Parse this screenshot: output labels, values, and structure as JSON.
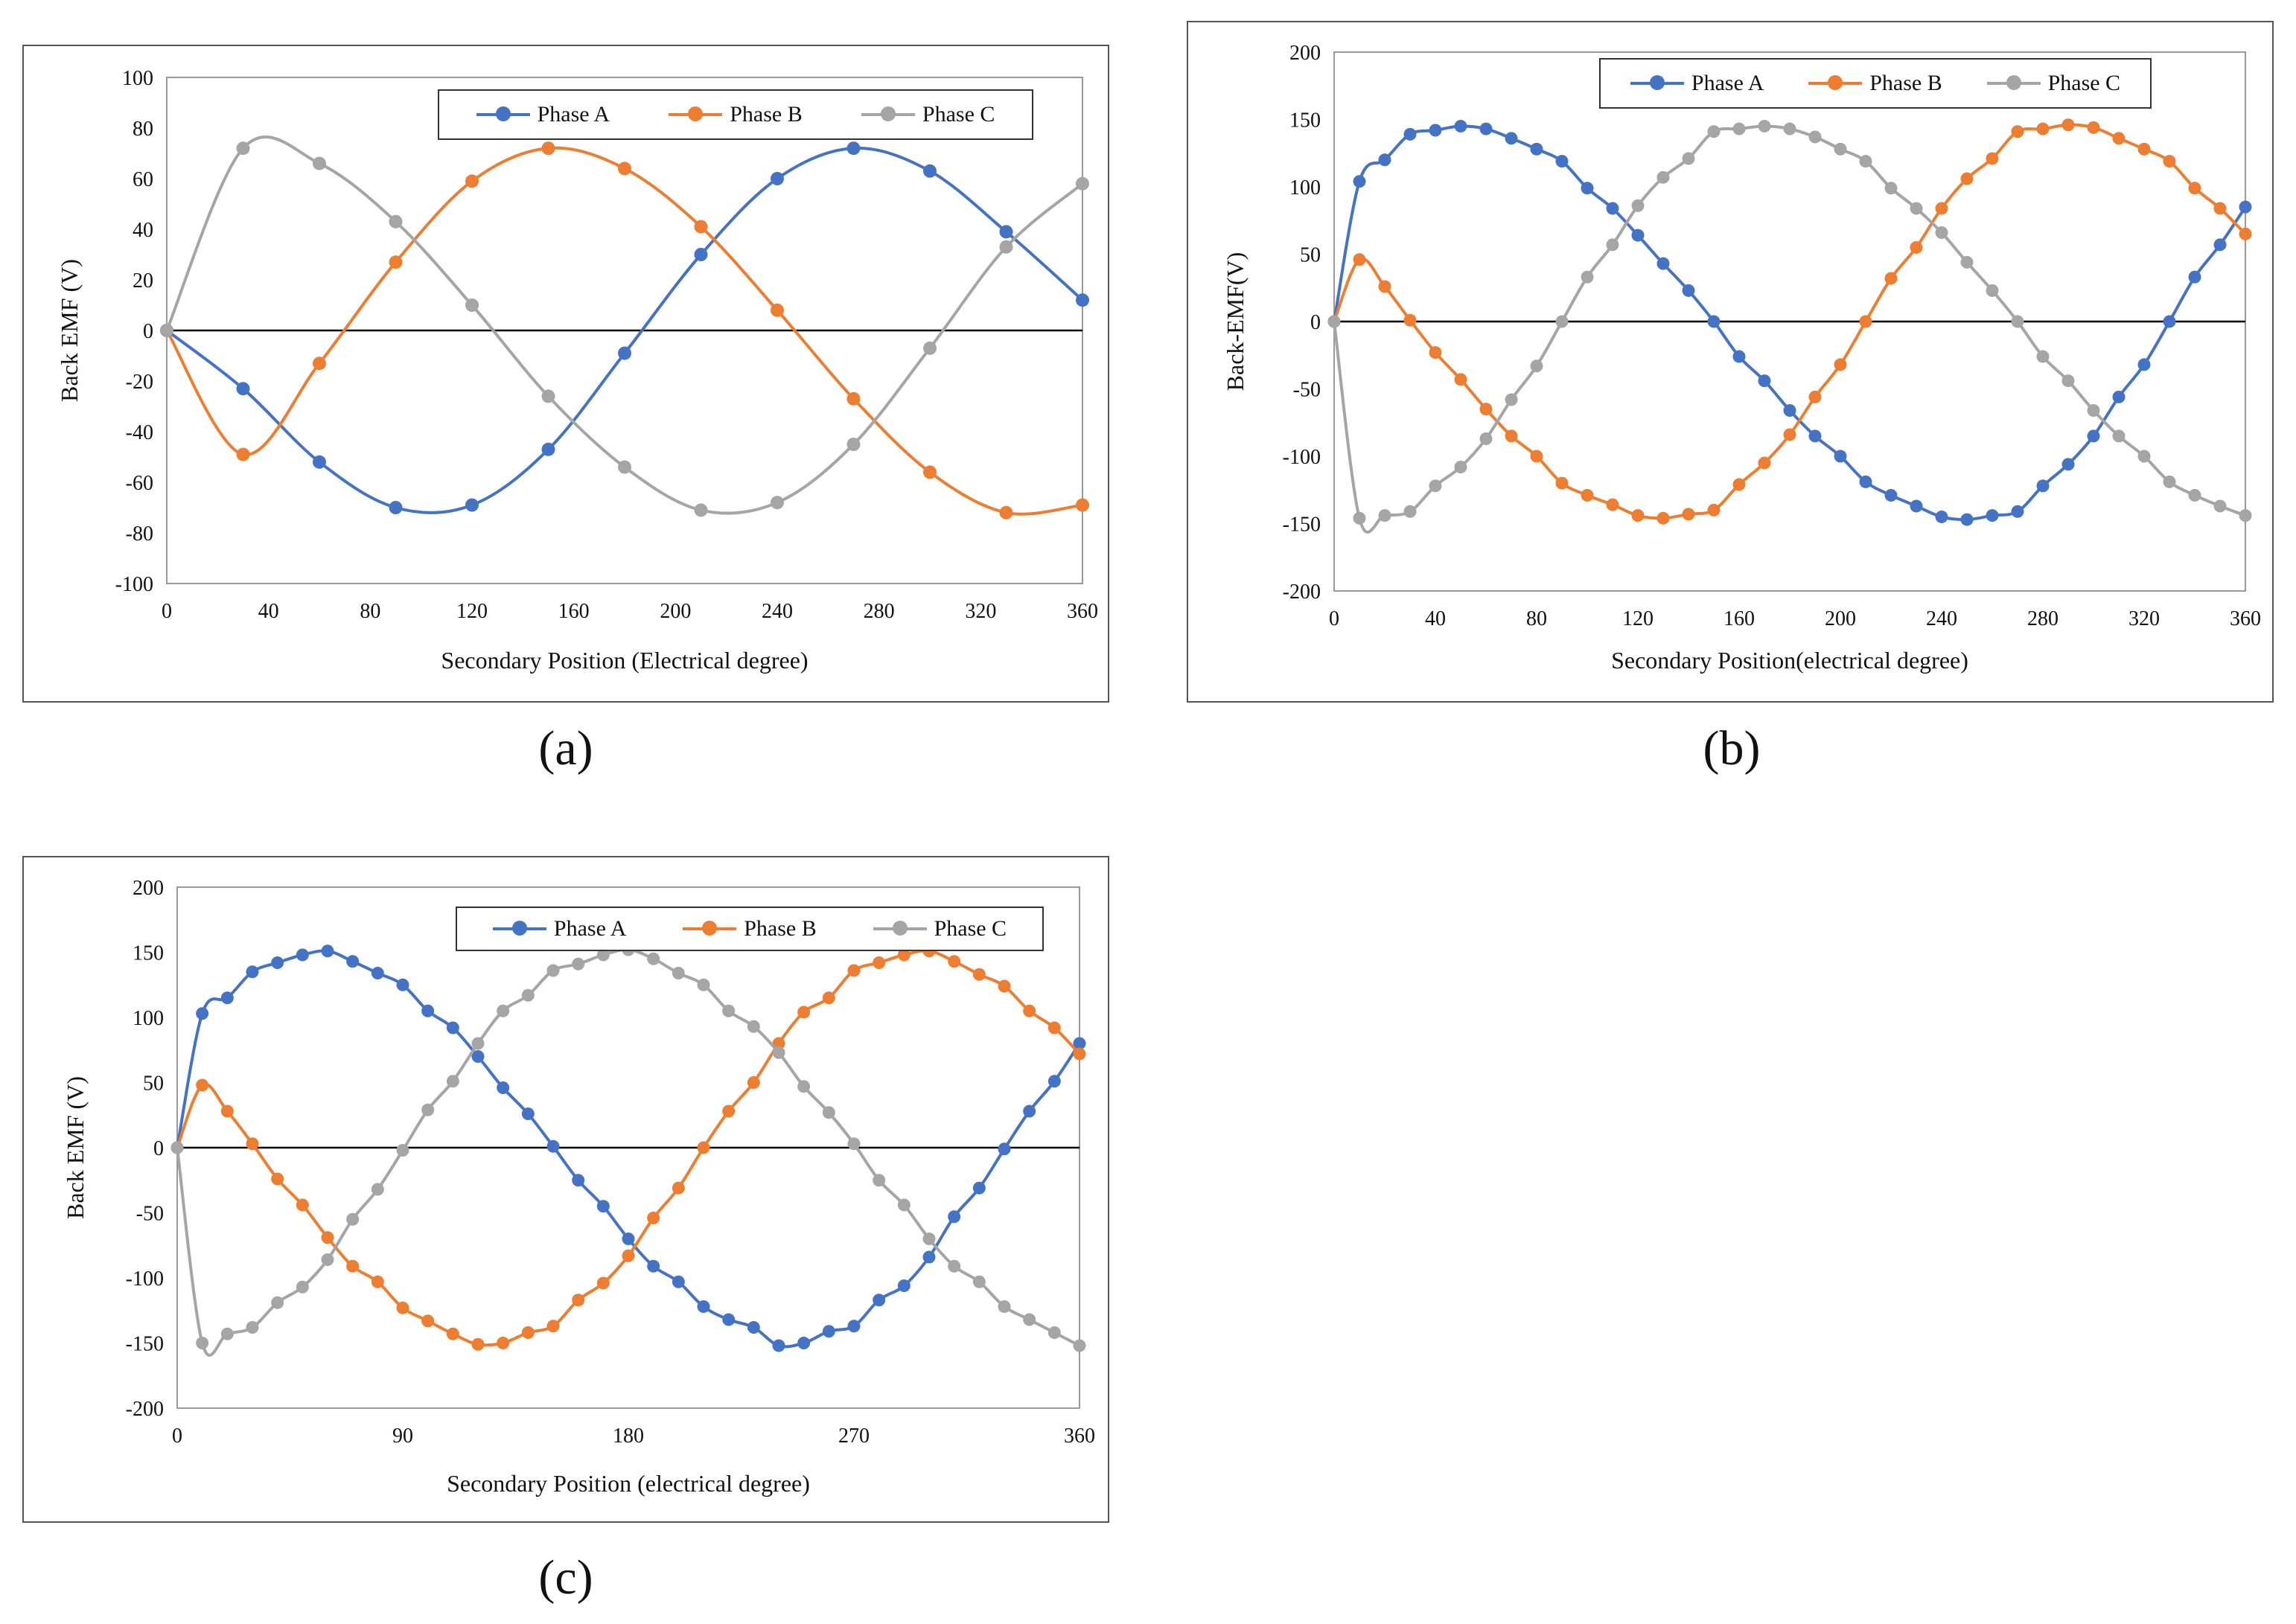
{
  "chart_data": [
    {
      "id": "a",
      "type": "line",
      "caption": "(a)",
      "xlabel": "Secondary Position (Electrical degree)",
      "ylabel": "Back EMF (V)",
      "xlim": [
        0,
        360
      ],
      "ylim": [
        -100,
        100
      ],
      "xticks": [
        0,
        40,
        80,
        120,
        160,
        200,
        240,
        280,
        320,
        360
      ],
      "yticks": [
        -100,
        -80,
        -60,
        -40,
        -20,
        0,
        20,
        40,
        60,
        80,
        100
      ],
      "legend_position": "top-right",
      "series": [
        {
          "name": "Phase A",
          "color": "#4472C4",
          "x": [
            0,
            30,
            60,
            90,
            120,
            150,
            180,
            210,
            240,
            270,
            300,
            330,
            360
          ],
          "y": [
            0,
            -23,
            -52,
            -70,
            -69,
            -47,
            -9,
            30,
            60,
            72,
            63,
            39,
            12
          ]
        },
        {
          "name": "Phase B",
          "color": "#ED7D31",
          "x": [
            0,
            30,
            60,
            90,
            120,
            150,
            180,
            210,
            240,
            270,
            300,
            330,
            360
          ],
          "y": [
            0,
            -49,
            -13,
            27,
            59,
            72,
            64,
            41,
            8,
            -27,
            -56,
            -72,
            -69
          ]
        },
        {
          "name": "Phase C",
          "color": "#A5A5A5",
          "x": [
            0,
            30,
            60,
            90,
            120,
            150,
            180,
            210,
            240,
            270,
            300,
            330,
            360
          ],
          "y": [
            0,
            72,
            66,
            43,
            10,
            -26,
            -54,
            -71,
            -68,
            -45,
            -7,
            33,
            58
          ]
        }
      ]
    },
    {
      "id": "b",
      "type": "line",
      "caption": "(b)",
      "xlabel": "Secondary Position(electrical degree)",
      "ylabel": "Back-EMF(V)",
      "xlim": [
        0,
        360
      ],
      "ylim": [
        -200,
        200
      ],
      "xticks": [
        0,
        40,
        80,
        120,
        160,
        200,
        240,
        280,
        320,
        360
      ],
      "yticks": [
        -200,
        -150,
        -100,
        -50,
        0,
        50,
        100,
        150,
        200
      ],
      "legend_position": "top-right",
      "series": [
        {
          "name": "Phase A",
          "color": "#4472C4",
          "x": [
            0,
            10,
            20,
            30,
            40,
            50,
            60,
            70,
            80,
            90,
            100,
            110,
            120,
            130,
            140,
            150,
            160,
            170,
            180,
            190,
            200,
            210,
            220,
            230,
            240,
            250,
            260,
            270,
            280,
            290,
            300,
            310,
            320,
            330,
            340,
            350,
            360
          ],
          "y": [
            0,
            104,
            120,
            139,
            142,
            145,
            143,
            136,
            128,
            119,
            99,
            84,
            64,
            43,
            23,
            0,
            -26,
            -44,
            -66,
            -85,
            -100,
            -119,
            -129,
            -137,
            -145,
            -147,
            -144,
            -141,
            -122,
            -106,
            -85,
            -56,
            -32,
            0,
            33,
            57,
            85
          ]
        },
        {
          "name": "Phase B",
          "color": "#ED7D31",
          "x": [
            0,
            10,
            20,
            30,
            40,
            50,
            60,
            70,
            80,
            90,
            100,
            110,
            120,
            130,
            140,
            150,
            160,
            170,
            180,
            190,
            200,
            210,
            220,
            230,
            240,
            250,
            260,
            270,
            280,
            290,
            300,
            310,
            320,
            330,
            340,
            350,
            360
          ],
          "y": [
            0,
            46,
            26,
            1,
            -23,
            -43,
            -65,
            -85,
            -100,
            -120,
            -129,
            -136,
            -144,
            -146,
            -143,
            -140,
            -121,
            -105,
            -84,
            -56,
            -32,
            0,
            32,
            55,
            84,
            106,
            121,
            141,
            143,
            146,
            144,
            136,
            128,
            119,
            99,
            84,
            65
          ]
        },
        {
          "name": "Phase C",
          "color": "#A5A5A5",
          "x": [
            0,
            10,
            20,
            30,
            40,
            50,
            60,
            70,
            80,
            90,
            100,
            110,
            120,
            130,
            140,
            150,
            160,
            170,
            180,
            190,
            200,
            210,
            220,
            230,
            240,
            250,
            260,
            270,
            280,
            290,
            300,
            310,
            320,
            330,
            340,
            350,
            360
          ],
          "y": [
            0,
            -146,
            -144,
            -141,
            -122,
            -108,
            -87,
            -58,
            -33,
            0,
            33,
            57,
            86,
            107,
            121,
            141,
            143,
            145,
            143,
            137,
            128,
            119,
            99,
            84,
            66,
            44,
            23,
            0,
            -26,
            -44,
            -66,
            -85,
            -100,
            -119,
            -129,
            -137,
            -144
          ]
        }
      ]
    },
    {
      "id": "c",
      "type": "line",
      "caption": "(c)",
      "xlabel": "Secondary Position (electrical degree)",
      "ylabel": "Back EMF (V)",
      "xlim": [
        0,
        360
      ],
      "ylim": [
        -200,
        200
      ],
      "xticks": [
        0,
        90,
        180,
        270,
        360
      ],
      "yticks": [
        -200,
        -150,
        -100,
        -50,
        0,
        50,
        100,
        150,
        200
      ],
      "legend_position": "top-right",
      "series": [
        {
          "name": "Phase A",
          "color": "#4472C4",
          "x": [
            0,
            10,
            20,
            30,
            40,
            50,
            60,
            70,
            80,
            90,
            100,
            110,
            120,
            130,
            140,
            150,
            160,
            170,
            180,
            190,
            200,
            210,
            220,
            230,
            240,
            250,
            260,
            270,
            280,
            290,
            300,
            310,
            320,
            330,
            340,
            350,
            360
          ],
          "y": [
            0,
            103,
            115,
            135,
            142,
            148,
            151,
            143,
            134,
            125,
            105,
            92,
            70,
            46,
            26,
            1,
            -25,
            -45,
            -70,
            -91,
            -103,
            -122,
            -132,
            -138,
            -152,
            -150,
            -141,
            -137,
            -117,
            -106,
            -84,
            -53,
            -31,
            -1,
            28,
            51,
            80
          ]
        },
        {
          "name": "Phase B",
          "color": "#ED7D31",
          "x": [
            0,
            10,
            20,
            30,
            40,
            50,
            60,
            70,
            80,
            90,
            100,
            110,
            120,
            130,
            140,
            150,
            160,
            170,
            180,
            190,
            200,
            210,
            220,
            230,
            240,
            250,
            260,
            270,
            280,
            290,
            300,
            310,
            320,
            330,
            340,
            350,
            360
          ],
          "y": [
            0,
            48,
            28,
            3,
            -24,
            -44,
            -69,
            -91,
            -103,
            -123,
            -133,
            -143,
            -151,
            -150,
            -142,
            -137,
            -117,
            -104,
            -83,
            -54,
            -31,
            0,
            28,
            50,
            80,
            104,
            115,
            136,
            142,
            148,
            151,
            143,
            133,
            124,
            105,
            92,
            72
          ]
        },
        {
          "name": "Phase C",
          "color": "#A5A5A5",
          "x": [
            0,
            10,
            20,
            30,
            40,
            50,
            60,
            70,
            80,
            90,
            100,
            110,
            120,
            130,
            140,
            150,
            160,
            170,
            180,
            190,
            200,
            210,
            220,
            230,
            240,
            250,
            260,
            270,
            280,
            290,
            300,
            310,
            320,
            330,
            340,
            350,
            360
          ],
          "y": [
            0,
            -150,
            -143,
            -138,
            -119,
            -107,
            -86,
            -55,
            -32,
            -2,
            29,
            51,
            80,
            105,
            117,
            136,
            141,
            148,
            152,
            145,
            134,
            125,
            105,
            93,
            73,
            47,
            27,
            3,
            -25,
            -44,
            -70,
            -91,
            -103,
            -122,
            -132,
            -142,
            -152
          ]
        }
      ]
    }
  ]
}
